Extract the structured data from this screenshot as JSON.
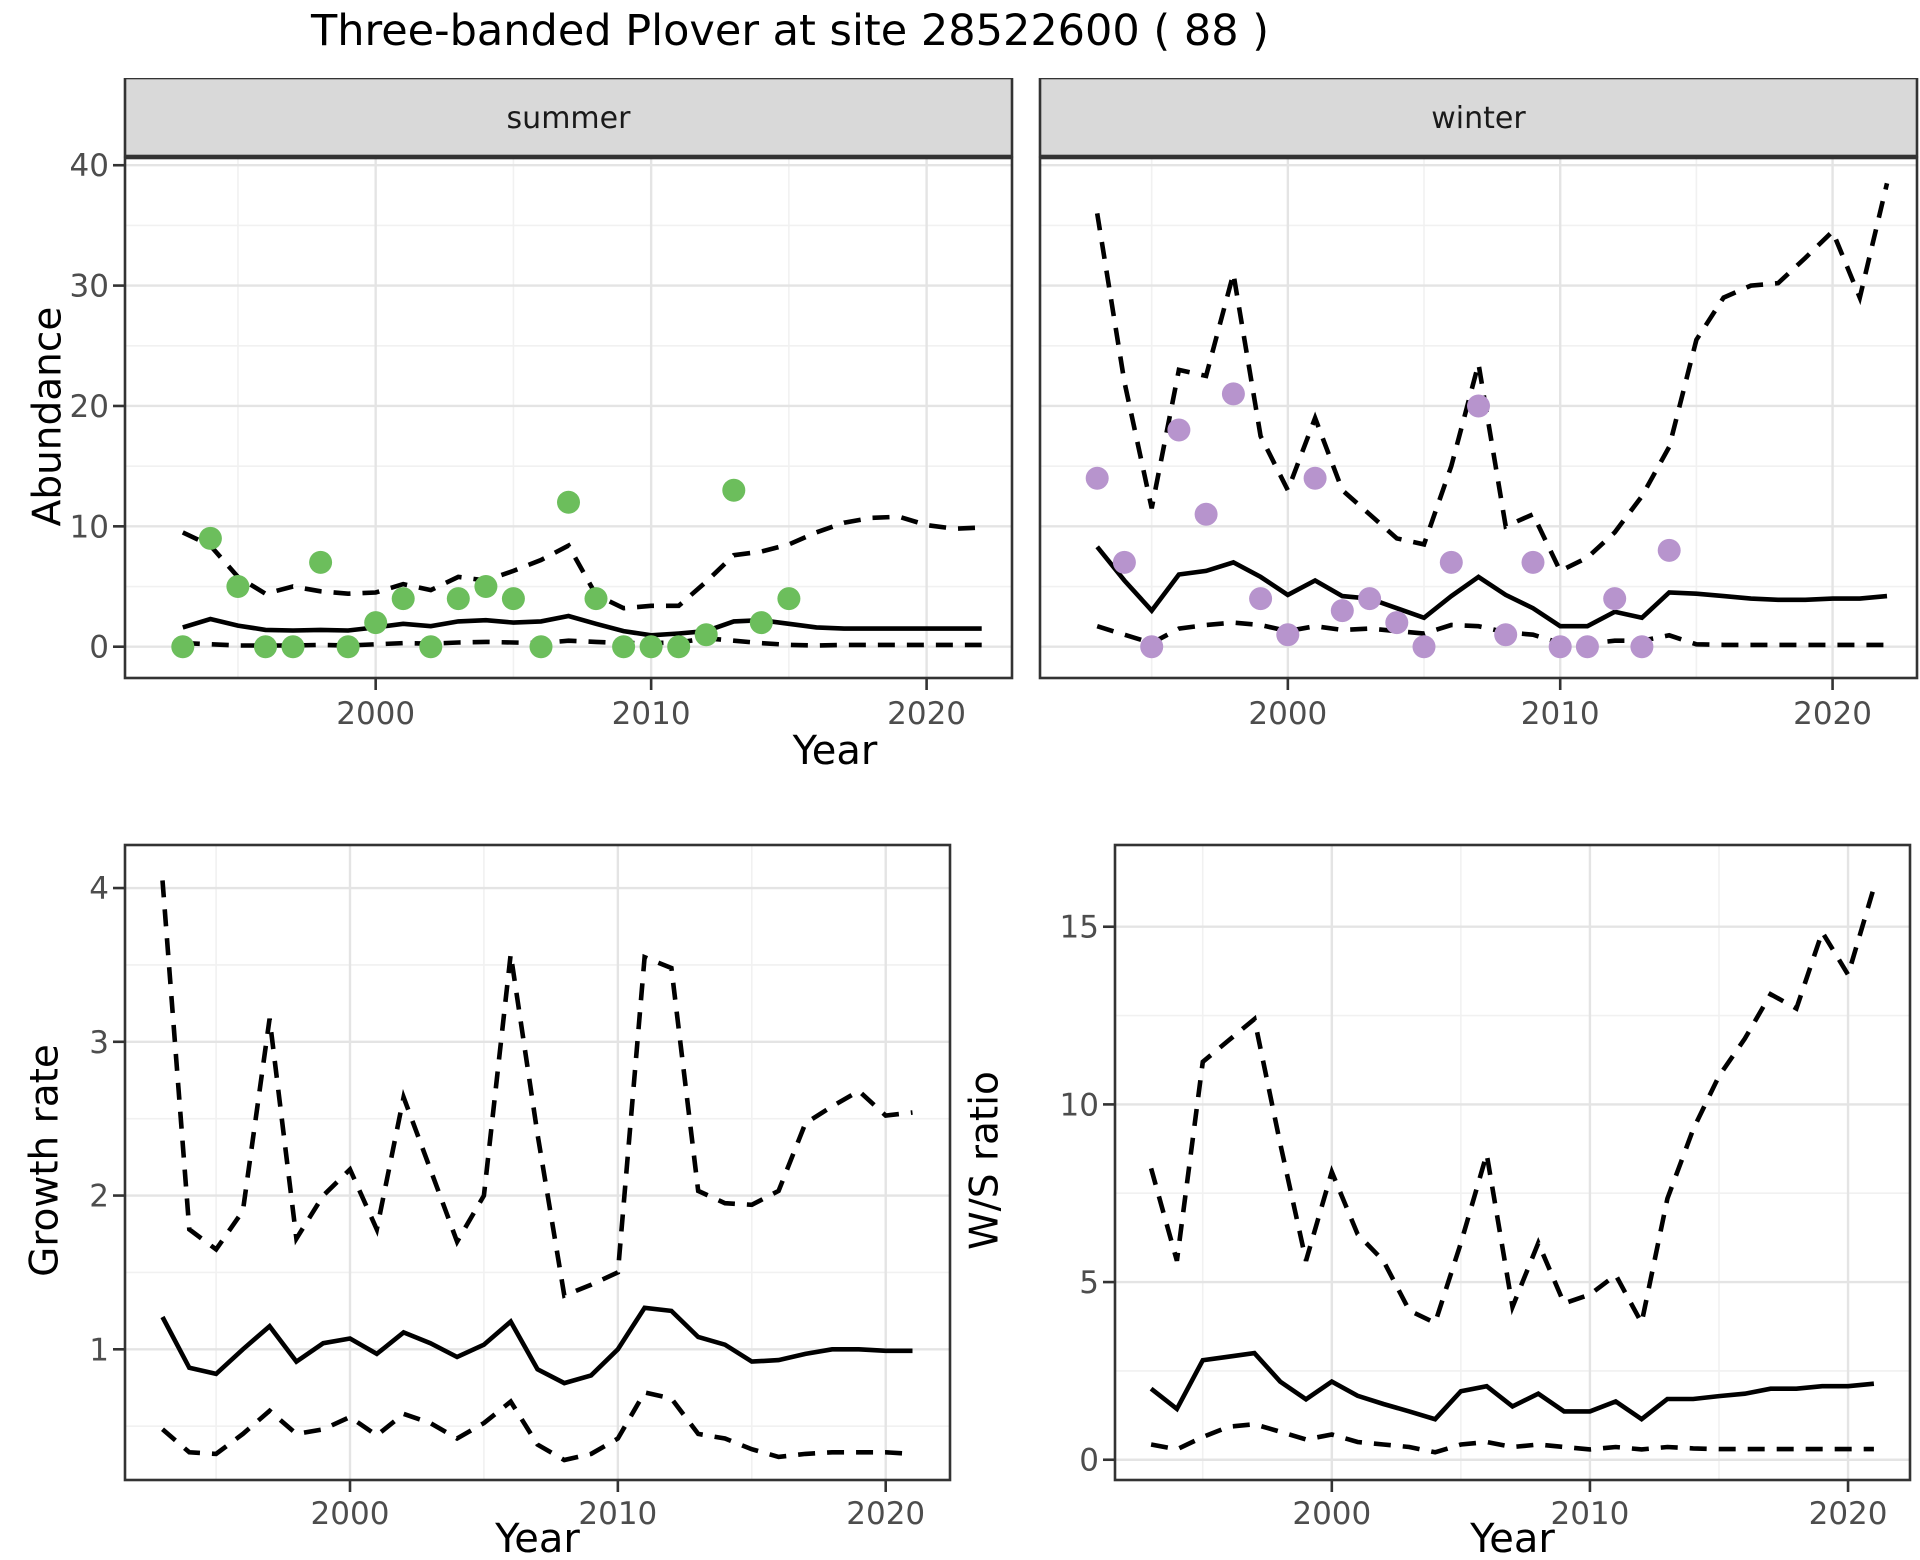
{
  "title": "Three-banded Plover at site 28522600 ( 88 )",
  "colors": {
    "summer_point": "#6CBE5C",
    "winter_point": "#B794CD",
    "line": "#000000",
    "strip_bg": "#D9D9D9",
    "strip_text": "#1A1A1A",
    "panel_border": "#333333",
    "grid_major": "#E4E4E4",
    "grid_minor": "#F1F1F1",
    "tick_mark": "#333333",
    "tick_label": "#4D4D4D",
    "axis_title": "#000000",
    "plot_bg": "#FFFFFF"
  },
  "chart_data": [
    {
      "id": "abundance-summer",
      "type": "line",
      "facet_label": "summer",
      "xlabel": "Year",
      "ylabel": "Abundance",
      "xlim": [
        1990.9,
        2023.1
      ],
      "ylim": [
        -2.6,
        40.6
      ],
      "xticks": [
        2000,
        2010,
        2020
      ],
      "xminor": [
        1995,
        2005,
        2015
      ],
      "yticks": [
        0,
        10,
        20,
        30,
        40
      ],
      "yminor": [
        5,
        15,
        25,
        35
      ],
      "grid": true,
      "legend": "none",
      "points": {
        "name": "observed-count",
        "color": "#6CBE5C",
        "years": [
          1993,
          1994,
          1995,
          1996,
          1997,
          1998,
          1999,
          2000,
          2001,
          2002,
          2003,
          2004,
          2005,
          2006,
          2007,
          2008,
          2009,
          2010,
          2011,
          2012,
          2013,
          2014,
          2015
        ],
        "values": [
          0,
          9,
          5,
          0,
          0,
          7,
          0,
          2,
          4,
          0,
          4,
          5,
          4,
          0,
          12,
          4,
          0,
          0,
          0,
          1,
          13,
          2,
          4
        ]
      },
      "series": [
        {
          "name": "estimate",
          "style": "solid",
          "years": [
            1993,
            1994,
            1995,
            1996,
            1997,
            1998,
            1999,
            2000,
            2001,
            2002,
            2003,
            2004,
            2005,
            2006,
            2007,
            2008,
            2009,
            2010,
            2011,
            2012,
            2013,
            2014,
            2015,
            2016,
            2017,
            2018,
            2019,
            2020,
            2021,
            2022
          ],
          "values": [
            1.6,
            2.3,
            1.75,
            1.4,
            1.35,
            1.4,
            1.35,
            1.6,
            1.9,
            1.7,
            2.1,
            2.2,
            2.0,
            2.1,
            2.55,
            1.9,
            1.3,
            0.95,
            1.1,
            1.3,
            2.1,
            2.2,
            1.9,
            1.6,
            1.5,
            1.5,
            1.5,
            1.5,
            1.5,
            1.5
          ]
        },
        {
          "name": "upper_ci",
          "style": "dashed",
          "years": [
            1993,
            1994,
            1995,
            1996,
            1997,
            1998,
            1999,
            2000,
            2001,
            2002,
            2003,
            2004,
            2005,
            2006,
            2007,
            2008,
            2009,
            2010,
            2011,
            2012,
            2013,
            2014,
            2015,
            2016,
            2017,
            2018,
            2019,
            2020,
            2021,
            2022
          ],
          "values": [
            9.5,
            8.4,
            5.8,
            4.4,
            5.0,
            4.6,
            4.4,
            4.5,
            5.2,
            4.7,
            5.8,
            5.5,
            6.3,
            7.2,
            8.4,
            4.3,
            3.2,
            3.4,
            3.4,
            5.4,
            7.6,
            7.9,
            8.5,
            9.5,
            10.3,
            10.7,
            10.8,
            10.1,
            9.8,
            9.9
          ]
        },
        {
          "name": "lower_ci",
          "style": "dashed",
          "years": [
            1993,
            1994,
            1995,
            1996,
            1997,
            1998,
            1999,
            2000,
            2001,
            2002,
            2003,
            2004,
            2005,
            2006,
            2007,
            2008,
            2009,
            2010,
            2011,
            2012,
            2013,
            2014,
            2015,
            2016,
            2017,
            2018,
            2019,
            2020,
            2021,
            2022
          ],
          "values": [
            0.3,
            0.2,
            0.1,
            0.1,
            0.1,
            0.15,
            0.1,
            0.2,
            0.3,
            0.25,
            0.35,
            0.4,
            0.35,
            0.3,
            0.5,
            0.4,
            0.3,
            0.3,
            0.35,
            0.7,
            0.5,
            0.3,
            0.15,
            0.1,
            0.15,
            0.15,
            0.15,
            0.15,
            0.15,
            0.15
          ]
        }
      ]
    },
    {
      "id": "abundance-winter",
      "type": "line",
      "facet_label": "winter",
      "xlabel": "Year",
      "ylabel": "Abundance",
      "xlim": [
        1990.9,
        2023.1
      ],
      "ylim": [
        -2.6,
        40.6
      ],
      "xticks": [
        2000,
        2010,
        2020
      ],
      "xminor": [
        1995,
        2005,
        2015
      ],
      "yticks": [
        0,
        10,
        20,
        30,
        40
      ],
      "yminor": [
        5,
        15,
        25,
        35
      ],
      "grid": true,
      "legend": "none",
      "points": {
        "name": "observed-count",
        "color": "#B794CD",
        "years": [
          1993,
          1994,
          1995,
          1996,
          1997,
          1998,
          1999,
          2000,
          2001,
          2002,
          2003,
          2004,
          2005,
          2006,
          2007,
          2008,
          2009,
          2010,
          2011,
          2012,
          2013,
          2014
        ],
        "values": [
          14,
          7,
          0,
          18,
          11,
          21,
          4,
          1,
          14,
          3,
          4,
          2,
          0,
          7,
          20,
          1,
          7,
          0,
          0,
          4,
          0,
          8
        ]
      },
      "series": [
        {
          "name": "estimate",
          "style": "solid",
          "years": [
            1993,
            1994,
            1995,
            1996,
            1997,
            1998,
            1999,
            2000,
            2001,
            2002,
            2003,
            2004,
            2005,
            2006,
            2007,
            2008,
            2009,
            2010,
            2011,
            2012,
            2013,
            2014,
            2015,
            2016,
            2017,
            2018,
            2019,
            2020,
            2021,
            2022
          ],
          "values": [
            8.3,
            5.5,
            3.0,
            6.0,
            6.3,
            7.0,
            5.8,
            4.3,
            5.5,
            4.2,
            4.0,
            3.2,
            2.4,
            4.2,
            5.8,
            4.3,
            3.2,
            1.7,
            1.7,
            2.9,
            2.4,
            4.5,
            4.4,
            4.2,
            4.0,
            3.9,
            3.9,
            4.0,
            4.0,
            4.2
          ]
        },
        {
          "name": "upper_ci",
          "style": "dashed",
          "years": [
            1993,
            1994,
            1995,
            1996,
            1997,
            1998,
            1999,
            2000,
            2001,
            2002,
            2003,
            2004,
            2005,
            2006,
            2007,
            2008,
            2009,
            2010,
            2011,
            2012,
            2013,
            2014,
            2015,
            2016,
            2017,
            2018,
            2019,
            2020,
            2021,
            2022
          ],
          "values": [
            36,
            22,
            11.5,
            23,
            22.5,
            31,
            17.5,
            13,
            19,
            13,
            11,
            9,
            8.5,
            15,
            23.5,
            10,
            11,
            6.3,
            7.4,
            9.5,
            12.5,
            16.6,
            25.5,
            29,
            30,
            30.2,
            32.3,
            34.5,
            29,
            38.5
          ]
        },
        {
          "name": "lower_ci",
          "style": "dashed",
          "years": [
            1993,
            1994,
            1995,
            1996,
            1997,
            1998,
            1999,
            2000,
            2001,
            2002,
            2003,
            2004,
            2005,
            2006,
            2007,
            2008,
            2009,
            2010,
            2011,
            2012,
            2013,
            2014,
            2015,
            2016,
            2017,
            2018,
            2019,
            2020,
            2021,
            2022
          ],
          "values": [
            1.7,
            1.0,
            0.3,
            1.5,
            1.8,
            2.0,
            1.8,
            1.3,
            1.7,
            1.4,
            1.5,
            1.3,
            1.1,
            1.8,
            1.7,
            1.2,
            1.0,
            0.3,
            0.25,
            0.5,
            0.5,
            0.95,
            0.2,
            0.15,
            0.15,
            0.15,
            0.15,
            0.15,
            0.15,
            0.15
          ]
        }
      ]
    },
    {
      "id": "growth-rate",
      "type": "line",
      "facet_label": null,
      "xlabel": "Year",
      "ylabel": "Growth rate",
      "xlim": [
        1991.6,
        2022.4
      ],
      "ylim": [
        0.15,
        4.28
      ],
      "xticks": [
        2000,
        2010,
        2020
      ],
      "xminor": [
        1995,
        2005,
        2015
      ],
      "yticks": [
        1,
        2,
        3,
        4
      ],
      "yminor": [
        0.5,
        1.5,
        2.5,
        3.5
      ],
      "grid": true,
      "legend": "none",
      "points": null,
      "series": [
        {
          "name": "estimate",
          "style": "solid",
          "years": [
            1993,
            1994,
            1995,
            1996,
            1997,
            1998,
            1999,
            2000,
            2001,
            2002,
            2003,
            2004,
            2005,
            2006,
            2007,
            2008,
            2009,
            2010,
            2011,
            2012,
            2013,
            2014,
            2015,
            2016,
            2017,
            2018,
            2019,
            2020,
            2021
          ],
          "values": [
            1.21,
            0.88,
            0.84,
            1.0,
            1.15,
            0.92,
            1.04,
            1.07,
            0.97,
            1.11,
            1.04,
            0.95,
            1.03,
            1.18,
            0.87,
            0.78,
            0.83,
            1.0,
            1.27,
            1.25,
            1.08,
            1.03,
            0.92,
            0.93,
            0.97,
            1.0,
            1.0,
            0.99,
            0.99
          ]
        },
        {
          "name": "upper_ci",
          "style": "dashed",
          "years": [
            1993,
            1994,
            1995,
            1996,
            1997,
            1998,
            1999,
            2000,
            2001,
            2002,
            2003,
            2004,
            2005,
            2006,
            2007,
            2008,
            2009,
            2010,
            2011,
            2012,
            2013,
            2014,
            2015,
            2016,
            2017,
            2018,
            2019,
            2020,
            2021
          ],
          "values": [
            4.05,
            1.78,
            1.65,
            1.9,
            3.15,
            1.72,
            2.0,
            2.17,
            1.78,
            2.64,
            2.17,
            1.7,
            2.0,
            3.57,
            2.4,
            1.35,
            1.42,
            1.5,
            3.55,
            3.48,
            2.03,
            1.95,
            1.94,
            2.03,
            2.47,
            2.58,
            2.68,
            2.52,
            2.54
          ]
        },
        {
          "name": "lower_ci",
          "style": "dashed",
          "years": [
            1993,
            1994,
            1995,
            1996,
            1997,
            1998,
            1999,
            2000,
            2001,
            2002,
            2003,
            2004,
            2005,
            2006,
            2007,
            2008,
            2009,
            2010,
            2011,
            2012,
            2013,
            2014,
            2015,
            2016,
            2017,
            2018,
            2019,
            2020,
            2021
          ],
          "values": [
            0.48,
            0.33,
            0.32,
            0.45,
            0.6,
            0.45,
            0.48,
            0.56,
            0.44,
            0.58,
            0.52,
            0.42,
            0.52,
            0.66,
            0.38,
            0.28,
            0.32,
            0.42,
            0.72,
            0.68,
            0.45,
            0.42,
            0.35,
            0.3,
            0.32,
            0.33,
            0.33,
            0.33,
            0.32
          ]
        }
      ]
    },
    {
      "id": "ws-ratio",
      "type": "line",
      "facet_label": null,
      "xlabel": "Year",
      "ylabel": "W/S ratio",
      "xlim": [
        1991.6,
        2022.4
      ],
      "ylim": [
        -0.57,
        17.3
      ],
      "xticks": [
        2000,
        2010,
        2020
      ],
      "xminor": [
        1995,
        2005,
        2015
      ],
      "yticks": [
        0,
        5,
        10,
        15
      ],
      "yminor": [
        2.5,
        7.5,
        12.5
      ],
      "grid": true,
      "legend": "none",
      "points": null,
      "series": [
        {
          "name": "estimate",
          "style": "solid",
          "years": [
            1993,
            1994,
            1995,
            1996,
            1997,
            1998,
            1999,
            2000,
            2001,
            2002,
            2003,
            2004,
            2005,
            2006,
            2007,
            2008,
            2009,
            2010,
            2011,
            2012,
            2013,
            2014,
            2015,
            2016,
            2017,
            2018,
            2019,
            2020,
            2021
          ],
          "values": [
            2.0,
            1.43,
            2.8,
            2.9,
            3.0,
            2.2,
            1.7,
            2.2,
            1.8,
            1.57,
            1.36,
            1.14,
            1.93,
            2.07,
            1.5,
            1.86,
            1.36,
            1.36,
            1.64,
            1.14,
            1.71,
            1.71,
            1.79,
            1.86,
            2.0,
            2.0,
            2.07,
            2.07,
            2.14
          ]
        },
        {
          "name": "upper_ci",
          "style": "dashed",
          "years": [
            1993,
            1994,
            1995,
            1996,
            1997,
            1998,
            1999,
            2000,
            2001,
            2002,
            2003,
            2004,
            2005,
            2006,
            2007,
            2008,
            2009,
            2010,
            2011,
            2012,
            2013,
            2014,
            2015,
            2016,
            2017,
            2018,
            2019,
            2020,
            2021
          ],
          "values": [
            8.2,
            5.6,
            11.2,
            11.8,
            12.4,
            8.9,
            5.6,
            8.1,
            6.35,
            5.6,
            4.2,
            3.85,
            6.1,
            8.6,
            4.3,
            6.1,
            4.4,
            4.65,
            5.2,
            3.85,
            7.35,
            9.3,
            10.8,
            11.85,
            13.1,
            12.7,
            14.85,
            13.65,
            16.1
          ]
        },
        {
          "name": "lower_ci",
          "style": "dashed",
          "years": [
            1993,
            1994,
            1995,
            1996,
            1997,
            1998,
            1999,
            2000,
            2001,
            2002,
            2003,
            2004,
            2005,
            2006,
            2007,
            2008,
            2009,
            2010,
            2011,
            2012,
            2013,
            2014,
            2015,
            2016,
            2017,
            2018,
            2019,
            2020,
            2021
          ],
          "values": [
            0.43,
            0.29,
            0.64,
            0.93,
            1.0,
            0.79,
            0.57,
            0.71,
            0.5,
            0.43,
            0.36,
            0.21,
            0.43,
            0.5,
            0.36,
            0.43,
            0.36,
            0.29,
            0.36,
            0.29,
            0.36,
            0.32,
            0.3,
            0.3,
            0.3,
            0.3,
            0.3,
            0.3,
            0.3
          ]
        }
      ]
    }
  ]
}
